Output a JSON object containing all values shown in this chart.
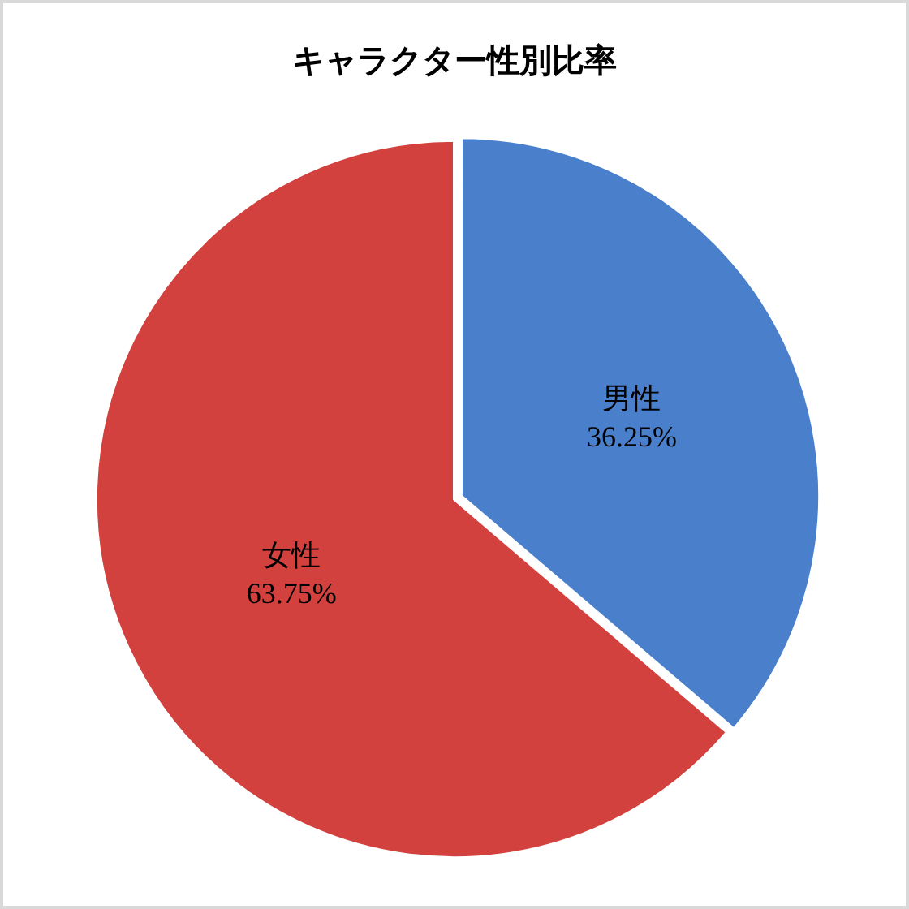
{
  "chart_data": {
    "type": "pie",
    "title": "キャラクター性別比率",
    "categories": [
      "男性",
      "女性"
    ],
    "values": [
      36.25,
      63.75
    ],
    "value_labels": [
      "36.25%",
      "63.75%"
    ],
    "colors": [
      "#4a7fcc",
      "#d2413d"
    ],
    "legend": false
  }
}
